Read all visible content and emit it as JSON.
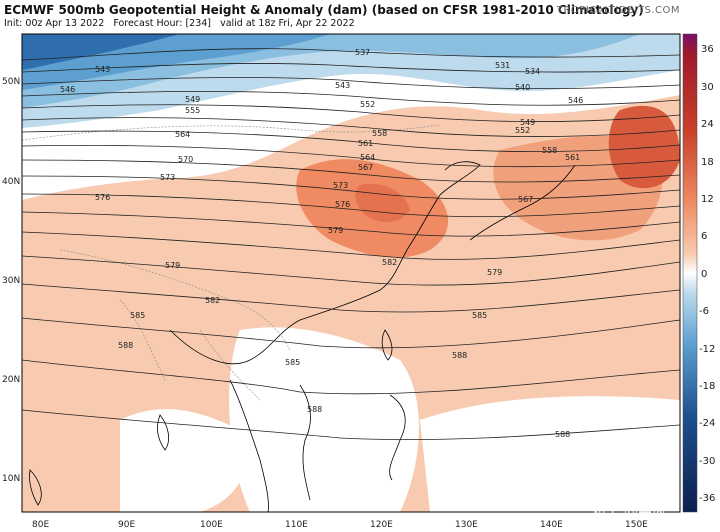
{
  "header": {
    "title": "ECMWF 500mb Geopotential Height & Anomaly (dam) (based on CFSR 1981-2010 Climatology)",
    "init": "Init: 00z Apr 13 2022",
    "forecast_hour": "Forecast Hour: [234]",
    "valid": "valid at 18z Fri, Apr 22 2022",
    "brand": "TROPICALTIDBITS.COM"
  },
  "axes": {
    "lon_labels": [
      "80E",
      "90E",
      "100E",
      "110E",
      "120E",
      "130E",
      "140E",
      "150E"
    ],
    "lat_labels": [
      "50N",
      "40N",
      "30N",
      "20N",
      "10N"
    ]
  },
  "colorbar": {
    "ticks": [
      "36",
      "30",
      "24",
      "18",
      "12",
      "6",
      "0",
      "-6",
      "-12",
      "-18",
      "-24",
      "-30",
      "-36"
    ],
    "colors": {
      "top": "#7a0d6e",
      "warm_strong": "#c8402a",
      "warm": "#ef8a62",
      "warm_light": "#f8cbb0",
      "neutral": "#ffffff",
      "cool_light": "#bedbed",
      "cool": "#5c9fd0",
      "cool_strong": "#1d4f8f",
      "bottom": "#0b1f4d"
    }
  },
  "contour_labels": [
    {
      "text": "537"
    },
    {
      "text": "543"
    },
    {
      "text": "546"
    },
    {
      "text": "549"
    },
    {
      "text": "552"
    },
    {
      "text": "555"
    },
    {
      "text": "558"
    },
    {
      "text": "561"
    },
    {
      "text": "564"
    },
    {
      "text": "567"
    },
    {
      "text": "570"
    },
    {
      "text": "573"
    },
    {
      "text": "576"
    },
    {
      "text": "579"
    },
    {
      "text": "582"
    },
    {
      "text": "585"
    },
    {
      "text": "588"
    },
    {
      "text": "531"
    },
    {
      "text": "534"
    },
    {
      "text": "540"
    }
  ],
  "watermark": "知乎 @等风"
}
